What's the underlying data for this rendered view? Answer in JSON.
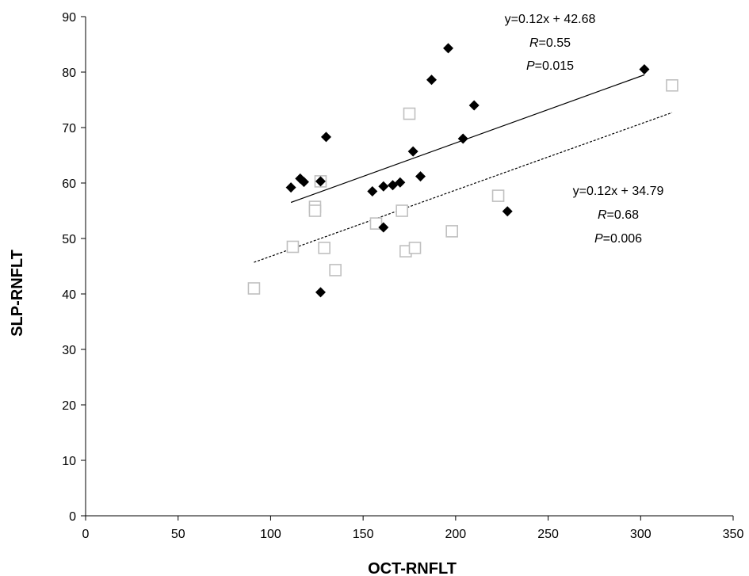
{
  "chart_data": {
    "type": "scatter",
    "title": "",
    "xlabel": "OCT-RNFLT",
    "ylabel": "SLP-RNFLT",
    "xlim": [
      0,
      350
    ],
    "ylim": [
      0,
      90
    ],
    "xticks": [
      0,
      50,
      100,
      150,
      200,
      250,
      300,
      350
    ],
    "yticks": [
      0,
      10,
      20,
      30,
      40,
      50,
      60,
      70,
      80,
      90
    ],
    "grid": false,
    "series": [
      {
        "marker": "diamond",
        "color": "#000000",
        "points": [
          [
            111,
            59.2
          ],
          [
            116,
            60.8
          ],
          [
            118,
            60.2
          ],
          [
            127,
            40.3
          ],
          [
            127,
            60.3
          ],
          [
            130,
            68.3
          ],
          [
            155,
            58.5
          ],
          [
            161,
            52.0
          ],
          [
            161,
            59.4
          ],
          [
            166,
            59.6
          ],
          [
            170,
            60.1
          ],
          [
            177,
            65.7
          ],
          [
            181,
            61.2
          ],
          [
            187,
            78.6
          ],
          [
            196,
            84.3
          ],
          [
            204,
            68.0
          ],
          [
            210,
            74.0
          ],
          [
            228,
            54.9
          ],
          [
            302,
            80.5
          ]
        ],
        "trendline": {
          "x": [
            111,
            302
          ],
          "y": [
            56.5,
            79.5
          ],
          "style": "solid",
          "equation": "y=0.12x + 42.68",
          "r_prefix": "R",
          "r_value": "=0.55",
          "p_prefix": "P",
          "p_value": "=0.015"
        }
      },
      {
        "marker": "square",
        "color": "#c0c0c0",
        "points": [
          [
            91,
            41.0
          ],
          [
            112,
            48.5
          ],
          [
            124,
            55.7
          ],
          [
            124,
            55.0
          ],
          [
            127,
            60.3
          ],
          [
            129,
            48.3
          ],
          [
            135,
            44.3
          ],
          [
            157,
            52.7
          ],
          [
            171,
            55.0
          ],
          [
            173,
            47.7
          ],
          [
            175,
            72.5
          ],
          [
            178,
            48.3
          ],
          [
            198,
            51.3
          ],
          [
            223,
            57.7
          ],
          [
            317,
            77.6
          ]
        ],
        "trendline": {
          "x": [
            91,
            317
          ],
          "y": [
            45.7,
            72.7
          ],
          "style": "dashed",
          "equation": "y=0.12x + 34.79",
          "r_prefix": "R",
          "r_value": "=0.68",
          "p_prefix": "P",
          "p_value": "=0.006"
        }
      }
    ]
  }
}
